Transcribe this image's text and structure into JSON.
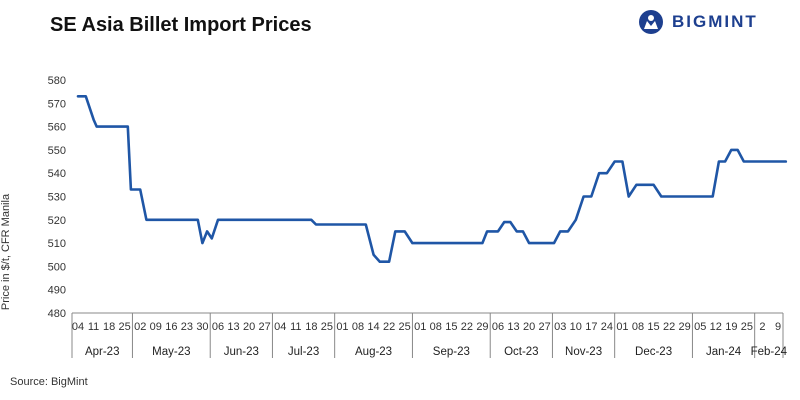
{
  "brand": {
    "name": "BIGMINT",
    "logo_icon": "bigmint-logo-icon",
    "color": "#1d3f8f"
  },
  "source": "Source: BigMint",
  "chart_data": {
    "type": "line",
    "title": "SE Asia Billet Import Prices",
    "xlabel": "",
    "ylabel": "Price in $/t, CFR Manila",
    "ylim": [
      480,
      580
    ],
    "yticks": [
      480,
      490,
      500,
      510,
      520,
      530,
      540,
      550,
      560,
      570,
      580
    ],
    "grid": false,
    "line_color": "#1f56a6",
    "x": [
      "04",
      "11",
      "18",
      "25",
      "02",
      "09",
      "16",
      "23",
      "30",
      "06",
      "13",
      "20",
      "27",
      "04",
      "11",
      "18",
      "25",
      "01",
      "08",
      "14",
      "22",
      "25",
      "01",
      "08",
      "15",
      "22",
      "29",
      "06",
      "13",
      "20",
      "27",
      "03",
      "10",
      "17",
      "24",
      "01",
      "08",
      "15",
      "22",
      "29",
      "05",
      "12",
      "19",
      "25",
      "2",
      "9"
    ],
    "x_tick_labels": [
      "04",
      "11",
      "18",
      "25",
      "02",
      "09",
      "16",
      "23",
      "30",
      "06",
      "13",
      "20",
      "27",
      "04",
      "11",
      "18",
      "25",
      "01",
      "08",
      "14",
      "22",
      "25",
      "01",
      "08",
      "15",
      "22",
      "29",
      "06",
      "13",
      "20",
      "27",
      "03",
      "10",
      "17",
      "24",
      "01",
      "08",
      "15",
      "22",
      "29",
      "05",
      "12",
      "19",
      "25",
      "2",
      "9"
    ],
    "months": [
      {
        "label": "Apr-23",
        "start": 0,
        "end": 4
      },
      {
        "label": "May-23",
        "start": 4,
        "end": 9
      },
      {
        "label": "Jun-23",
        "start": 9,
        "end": 13
      },
      {
        "label": "Jul-23",
        "start": 13,
        "end": 17
      },
      {
        "label": "Aug-23",
        "start": 17,
        "end": 22
      },
      {
        "label": "Sep-23",
        "start": 22,
        "end": 27
      },
      {
        "label": "Oct-23",
        "start": 27,
        "end": 31
      },
      {
        "label": "Nov-23",
        "start": 31,
        "end": 35
      },
      {
        "label": "Dec-23",
        "start": 35,
        "end": 40
      },
      {
        "label": "Jan-24",
        "start": 40,
        "end": 44
      },
      {
        "label": "Feb-24",
        "start": 44,
        "end": 46
      }
    ],
    "series": [
      {
        "name": "",
        "points": [
          [
            0,
            573
          ],
          [
            0.5,
            573
          ],
          [
            1,
            563
          ],
          [
            1.2,
            560
          ],
          [
            2.5,
            560
          ],
          [
            3.2,
            560
          ],
          [
            3.4,
            533
          ],
          [
            4,
            533
          ],
          [
            4.4,
            520
          ],
          [
            5.5,
            520
          ],
          [
            6.7,
            520
          ],
          [
            7.7,
            520
          ],
          [
            8,
            510
          ],
          [
            8.3,
            515
          ],
          [
            8.6,
            512
          ],
          [
            9,
            520
          ],
          [
            10,
            520
          ],
          [
            11,
            520
          ],
          [
            12,
            520
          ],
          [
            13,
            520
          ],
          [
            14,
            520
          ],
          [
            15,
            520
          ],
          [
            15.3,
            518
          ],
          [
            16,
            518
          ],
          [
            17,
            518
          ],
          [
            18,
            518
          ],
          [
            18.5,
            518
          ],
          [
            19,
            505
          ],
          [
            19.4,
            502
          ],
          [
            20,
            502
          ],
          [
            20.4,
            515
          ],
          [
            21,
            515
          ],
          [
            21.5,
            510
          ],
          [
            22,
            510
          ],
          [
            23,
            510
          ],
          [
            24,
            510
          ],
          [
            25,
            510
          ],
          [
            26,
            510
          ],
          [
            26.3,
            515
          ],
          [
            27,
            515
          ],
          [
            27.4,
            519
          ],
          [
            27.8,
            519
          ],
          [
            28.2,
            515
          ],
          [
            28.6,
            515
          ],
          [
            29,
            510
          ],
          [
            30,
            510
          ],
          [
            30.6,
            510
          ],
          [
            31,
            515
          ],
          [
            31.5,
            515
          ],
          [
            32,
            520
          ],
          [
            32.5,
            530
          ],
          [
            33,
            530
          ],
          [
            33.5,
            540
          ],
          [
            34,
            540
          ],
          [
            34.5,
            545
          ],
          [
            35,
            545
          ],
          [
            35.4,
            530
          ],
          [
            35.9,
            535
          ],
          [
            36.4,
            535
          ],
          [
            37,
            535
          ],
          [
            37.5,
            530
          ],
          [
            38.5,
            530
          ],
          [
            39.5,
            530
          ],
          [
            40.5,
            530
          ],
          [
            40.8,
            530
          ],
          [
            41.2,
            545
          ],
          [
            41.6,
            545
          ],
          [
            42,
            550
          ],
          [
            42.4,
            550
          ],
          [
            42.8,
            545
          ],
          [
            43.5,
            545
          ],
          [
            44.5,
            545
          ],
          [
            45.5,
            545
          ]
        ]
      }
    ]
  }
}
